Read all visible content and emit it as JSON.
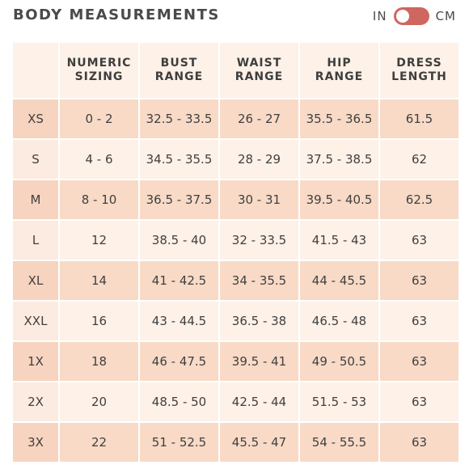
{
  "title": "BODY MEASUREMENTS",
  "unit_toggle": {
    "left_label": "IN",
    "right_label": "CM",
    "accent_color": "#cf6660"
  },
  "table": {
    "headers": [
      [
        "",
        ""
      ],
      [
        "NUMERIC",
        "SIZING"
      ],
      [
        "BUST",
        "RANGE"
      ],
      [
        "WAIST",
        "RANGE"
      ],
      [
        "HIP",
        "RANGE"
      ],
      [
        "DRESS",
        "LENGTH"
      ]
    ],
    "rows": [
      [
        "XS",
        "0 - 2",
        "32.5 - 33.5",
        "26 - 27",
        "35.5 - 36.5",
        "61.5"
      ],
      [
        "S",
        "4 - 6",
        "34.5 - 35.5",
        "28 - 29",
        "37.5 - 38.5",
        "62"
      ],
      [
        "M",
        "8 - 10",
        "36.5 - 37.5",
        "30 - 31",
        "39.5 - 40.5",
        "62.5"
      ],
      [
        "L",
        "12",
        "38.5 - 40",
        "32 - 33.5",
        "41.5 - 43",
        "63"
      ],
      [
        "XL",
        "14",
        "41 - 42.5",
        "34 - 35.5",
        "44 - 45.5",
        "63"
      ],
      [
        "XXL",
        "16",
        "43 - 44.5",
        "36.5 - 38",
        "46.5 - 48",
        "63"
      ],
      [
        "1X",
        "18",
        "46 - 47.5",
        "39.5 - 41",
        "49 - 50.5",
        "63"
      ],
      [
        "2X",
        "20",
        "48.5 - 50",
        "42.5 - 44",
        "51.5 - 53",
        "63"
      ],
      [
        "3X",
        "22",
        "51 - 52.5",
        "45.5 - 47",
        "54 - 55.5",
        "63"
      ]
    ]
  }
}
